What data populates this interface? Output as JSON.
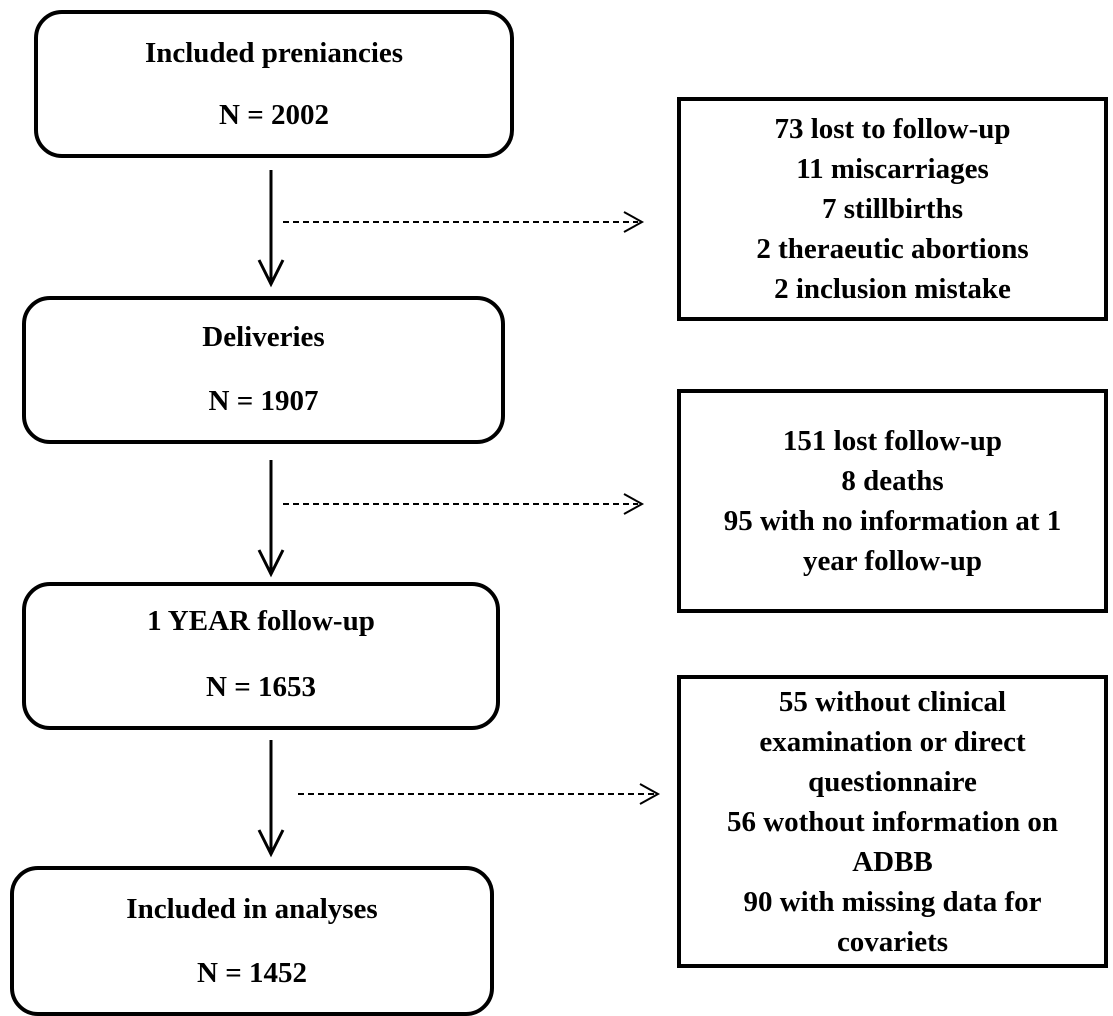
{
  "stages": [
    {
      "title": "Included preniancies",
      "count": "N = 2002"
    },
    {
      "title": "Deliveries",
      "count": "N = 1907"
    },
    {
      "title": "1 YEAR follow-up",
      "count": "N = 1653"
    },
    {
      "title": "Included in analyses",
      "count": "N = 1452"
    }
  ],
  "exclusions": [
    {
      "lines": [
        "73 lost to follow-up",
        "11 miscarriages",
        "7 stillbirths",
        "2 theraeutic abortions",
        "2 inclusion mistake"
      ]
    },
    {
      "lines": [
        "151 lost follow-up",
        "8 deaths",
        "95 with no information at 1",
        "year follow-up"
      ]
    },
    {
      "lines": [
        "55 without clinical",
        "examination or direct",
        "questionnaire",
        "56 wothout information on",
        "ADBB",
        "90 with missing data for",
        "covariets"
      ]
    }
  ]
}
